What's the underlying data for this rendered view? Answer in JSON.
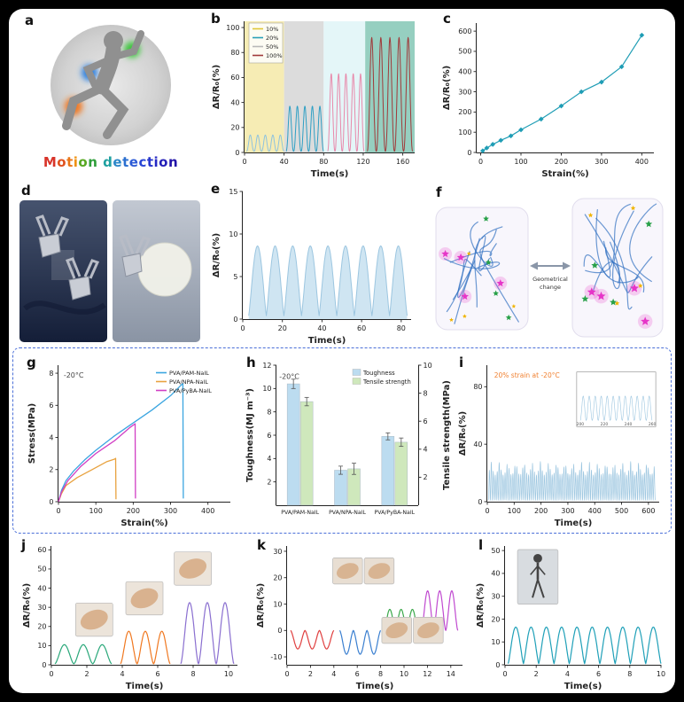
{
  "labels": {
    "a": "a",
    "b": "b",
    "c": "c",
    "d": "d",
    "e": "e",
    "f": "f",
    "g": "g",
    "h": "h",
    "i": "i",
    "j": "j",
    "k": "k",
    "l": "l"
  },
  "panel_a": {
    "caption": "Motion detection",
    "caption_colors": [
      "#d8342a",
      "#e0511e",
      "#ea7517",
      "#ef9212",
      "#58a822",
      "#2f9e3a",
      "#2f9e3a",
      "#1fa0a0",
      "#2b86c8",
      "#2b6fd0",
      "#2b5ad6",
      "#2946d6",
      "#2736cc",
      "#2528c4",
      "#231fb8",
      "#2113a8"
    ],
    "highlights": {
      "shoulder": "#3ec63e",
      "elbow": "#2a7fe0",
      "knee": "#f07820"
    }
  },
  "panel_f": {
    "caption_line1": "Geometrical",
    "caption_line2": "change",
    "chain_color": "#2f6fc0",
    "star_colors": [
      "#e635c8",
      "#28a048",
      "#f0b400"
    ]
  },
  "chart_data": [
    {
      "panel": "b",
      "type": "line",
      "xlabel": "Time(s)",
      "ylabel": "ΔR/R₀(%)",
      "xlim": [
        0,
        172
      ],
      "ylim": [
        0,
        105
      ],
      "xticks": [
        0,
        40,
        80,
        120,
        160
      ],
      "yticks": [
        0,
        20,
        40,
        60,
        80,
        100
      ],
      "m": {
        "l": 38,
        "r": 6,
        "t": 8,
        "b": 30
      },
      "bands": [
        {
          "x0": 0,
          "x1": 40,
          "color": "#f6ecb4"
        },
        {
          "x0": 40,
          "x1": 80,
          "color": "#dcdcdc"
        },
        {
          "x0": 80,
          "x1": 122,
          "color": "#e4f6f8"
        },
        {
          "x0": 122,
          "x1": 172,
          "color": "#96cfc0"
        }
      ],
      "waves": [
        {
          "x0": 2,
          "x1": 40,
          "cycles": 5,
          "amp": 13,
          "base": 1,
          "pow": 2.5,
          "color": "#8fc3de",
          "lw": 1
        },
        {
          "x0": 42,
          "x1": 80,
          "cycles": 5,
          "amp": 36,
          "base": 1,
          "pow": 2.5,
          "color": "#2e9fc4",
          "lw": 1
        },
        {
          "x0": 84,
          "x1": 121,
          "cycles": 5,
          "amp": 62,
          "base": 1,
          "pow": 2.5,
          "color": "#e888aa",
          "lw": 1
        },
        {
          "x0": 124,
          "x1": 170,
          "cycles": 5,
          "amp": 91,
          "base": 1,
          "pow": 2.5,
          "color": "#a03a3a",
          "lw": 1
        }
      ],
      "legend": {
        "pos": "tl",
        "w": 38,
        "box": true,
        "swatch": "line",
        "fs": 6.5,
        "items": [
          {
            "label": "10%",
            "color": "#e0c838"
          },
          {
            "label": "20%",
            "color": "#28a0b8"
          },
          {
            "label": "50%",
            "color": "#b8b8b8"
          },
          {
            "label": "100%",
            "color": "#a03a3a"
          }
        ]
      }
    },
    {
      "panel": "c",
      "type": "scatter-line",
      "xlabel": "Strain(%)",
      "ylabel": "ΔR/R₀(%)",
      "xlim": [
        -10,
        430
      ],
      "ylim": [
        0,
        640
      ],
      "xticks": [
        0,
        100,
        200,
        300,
        400
      ],
      "yticks": [
        0,
        100,
        200,
        300,
        400,
        500,
        600
      ],
      "m": {
        "l": 40,
        "r": 12,
        "t": 10,
        "b": 30
      },
      "lines": [
        {
          "color": "#1f9db5",
          "lw": 1.2,
          "markers": true,
          "points": [
            [
              5,
              8
            ],
            [
              15,
              22
            ],
            [
              30,
              40
            ],
            [
              50,
              60
            ],
            [
              75,
              82
            ],
            [
              100,
              112
            ],
            [
              150,
              165
            ],
            [
              200,
              230
            ],
            [
              250,
              300
            ],
            [
              300,
              348
            ],
            [
              350,
              424
            ],
            [
              400,
              580
            ]
          ]
        }
      ]
    },
    {
      "panel": "e",
      "type": "area-cycles",
      "xlabel": "Time(s)",
      "ylabel": "ΔR/R₀(%)",
      "xlim": [
        0,
        85
      ],
      "ylim": [
        0,
        15
      ],
      "xticks": [
        0,
        20,
        40,
        60,
        80
      ],
      "yticks": [
        0,
        5,
        10,
        15
      ],
      "m": {
        "l": 36,
        "r": 10,
        "t": 8,
        "b": 30
      },
      "waves": [
        {
          "x0": 3,
          "x1": 83,
          "cycles": 9,
          "amp": 8.2,
          "base": 0.4,
          "pow": 1.2,
          "color": "#9cc6e0",
          "fill": "#cfe5f2",
          "lw": 1
        }
      ]
    },
    {
      "panel": "g",
      "type": "line",
      "xlabel": "Strain(%)",
      "ylabel": "Stress(MPa)",
      "xlim": [
        0,
        460
      ],
      "ylim": [
        0,
        8.5
      ],
      "xticks": [
        0,
        100,
        200,
        300,
        400
      ],
      "yticks": [
        0,
        2,
        4,
        6,
        8
      ],
      "m": {
        "l": 36,
        "r": 8,
        "t": 8,
        "b": 30
      },
      "ann": [
        {
          "text": "-20°C",
          "fx": 0.03,
          "fy": 0.07,
          "fs": 8,
          "color": "#444"
        }
      ],
      "legend": {
        "pos": "tr",
        "w": 88,
        "box": false,
        "swatch": "line",
        "fs": 6.5,
        "items": [
          {
            "label": "PVA/PAM-NaIL",
            "color": "#3aa5e0"
          },
          {
            "label": "PVA/NPA-NaIL",
            "color": "#e8a23f"
          },
          {
            "label": "PVA/PyBA-NaIL",
            "color": "#d13ec4"
          }
        ]
      },
      "lines": [
        {
          "color": "#3aa5e0",
          "lw": 1.3,
          "points": [
            [
              0,
              0
            ],
            [
              8,
              0.7
            ],
            [
              20,
              1.3
            ],
            [
              40,
              1.9
            ],
            [
              70,
              2.6
            ],
            [
              100,
              3.2
            ],
            [
              150,
              4.1
            ],
            [
              200,
              4.9
            ],
            [
              250,
              5.7
            ],
            [
              300,
              6.6
            ],
            [
              330,
              7.3
            ],
            [
              333,
              7.35
            ],
            [
              334,
              0.2
            ]
          ]
        },
        {
          "color": "#e8a23f",
          "lw": 1.3,
          "points": [
            [
              0,
              0
            ],
            [
              8,
              0.5
            ],
            [
              20,
              1.0
            ],
            [
              50,
              1.5
            ],
            [
              90,
              2.0
            ],
            [
              130,
              2.5
            ],
            [
              150,
              2.65
            ],
            [
              153,
              2.7
            ],
            [
              154,
              0.15
            ]
          ]
        },
        {
          "color": "#d13ec4",
          "lw": 1.3,
          "points": [
            [
              0,
              0
            ],
            [
              8,
              0.6
            ],
            [
              25,
              1.3
            ],
            [
              60,
              2.2
            ],
            [
              100,
              3.0
            ],
            [
              150,
              3.8
            ],
            [
              190,
              4.6
            ],
            [
              205,
              4.85
            ],
            [
              206,
              0.2
            ]
          ]
        }
      ]
    },
    {
      "panel": "h",
      "type": "bar",
      "ylabel": "Toughness(MJ m⁻³)",
      "y2label": "Tensile strength(MPa)",
      "ylim": [
        0,
        12
      ],
      "yticks": [
        2,
        4,
        6,
        8,
        10,
        12
      ],
      "y2lim": [
        0,
        10
      ],
      "y2ticks": [
        2,
        4,
        6,
        8,
        10
      ],
      "m": {
        "l": 36,
        "r": 38,
        "t": 8,
        "b": 26
      },
      "ann": [
        {
          "text": "-20°C",
          "fx": 0.02,
          "fy": 0.08,
          "fs": 8,
          "color": "#444"
        }
      ],
      "legend": {
        "pos": "tr",
        "w": 78,
        "box": false,
        "swatch": "box",
        "fs": 6.8,
        "items": [
          {
            "label": "Toughness",
            "color": "#bcdcf0"
          },
          {
            "label": "Tensile strength",
            "color": "#cfe8bc"
          }
        ]
      },
      "bars": {
        "categories": [
          "PVA/PAM-NaIL",
          "PVA/NPA-NaIL",
          "PVA/PyBA-NaIL"
        ],
        "width": 15,
        "series": [
          {
            "name": "Toughness",
            "axis": "left",
            "color": "#bcdcf0",
            "values": [
              10.4,
              3.0,
              5.9
            ],
            "err": [
              0.4,
              0.35,
              0.3
            ]
          },
          {
            "name": "Tensile strength",
            "axis": "right",
            "color": "#cfe8bc",
            "values": [
              7.4,
              2.6,
              4.5
            ],
            "err": [
              0.3,
              0.4,
              0.3
            ]
          }
        ]
      }
    },
    {
      "panel": "i",
      "type": "line-cycles",
      "xlabel": "Time(s)",
      "ylabel": "ΔR/R₀(%)",
      "xlim": [
        0,
        640
      ],
      "ylim": [
        0,
        95
      ],
      "xticks": [
        0,
        100,
        200,
        300,
        400,
        500,
        600
      ],
      "yticks": [
        0,
        40,
        80
      ],
      "m": {
        "l": 34,
        "r": 8,
        "t": 8,
        "b": 30
      },
      "ann": [
        {
          "text": "20% strain at -20°C",
          "fx": 0.04,
          "fy": 0.07,
          "fs": 7.5,
          "color": "#f08030"
        }
      ],
      "waves": [
        {
          "x0": 4,
          "x1": 625,
          "cycles": 85,
          "amp": 27,
          "base": 1,
          "pow": 2,
          "jitter": 0.35,
          "color": "#9cc6e0",
          "lw": 0.7
        }
      ],
      "insets": [
        {
          "type": "minichart",
          "fx": 0.52,
          "fy": 0.05,
          "fw": 0.46,
          "fh": 0.4,
          "cycles": 12,
          "amp": 0.6,
          "color": "#9cc6e0",
          "ticks": [
            "200",
            "220",
            "240",
            "260"
          ]
        }
      ]
    },
    {
      "panel": "j",
      "type": "line-cycles",
      "xlabel": "Time(s)",
      "ylabel": "ΔR/R₀(%)",
      "xlim": [
        0,
        10.5
      ],
      "ylim": [
        0,
        62
      ],
      "xticks": [
        0,
        2,
        4,
        6,
        8,
        10
      ],
      "yticks": [
        0,
        10,
        20,
        30,
        40,
        50,
        60
      ],
      "m": {
        "l": 34,
        "r": 8,
        "t": 6,
        "b": 30
      },
      "waves": [
        {
          "x0": 0.2,
          "x1": 3.4,
          "cycles": 3,
          "amp": 10,
          "base": 0.5,
          "pow": 1.6,
          "color": "#2aa87a",
          "lw": 1.2
        },
        {
          "x0": 3.9,
          "x1": 6.7,
          "cycles": 3,
          "amp": 17,
          "base": 0.5,
          "pow": 1.6,
          "color": "#f07820",
          "lw": 1.2
        },
        {
          "x0": 7.3,
          "x1": 10.3,
          "cycles": 3,
          "amp": 32,
          "base": 0.5,
          "pow": 1.6,
          "color": "#8a6fd0",
          "lw": 1.2
        }
      ],
      "insets": [
        {
          "type": "photo",
          "variant": "hand1",
          "fx": 0.13,
          "fy": 0.48,
          "fw": 0.2,
          "fh": 0.28
        },
        {
          "type": "photo",
          "variant": "hand2",
          "fx": 0.4,
          "fy": 0.3,
          "fw": 0.2,
          "fh": 0.28
        },
        {
          "type": "photo",
          "variant": "hand3",
          "fx": 0.66,
          "fy": 0.05,
          "fw": 0.2,
          "fh": 0.28
        }
      ]
    },
    {
      "panel": "k",
      "type": "line-cycles",
      "xlabel": "Time(s)",
      "ylabel": "ΔR/R₀(%)",
      "xlim": [
        0,
        15
      ],
      "ylim": [
        -13,
        32
      ],
      "xticks": [
        0,
        2,
        4,
        6,
        8,
        10,
        12,
        14
      ],
      "yticks": [
        -10,
        0,
        10,
        20,
        30
      ],
      "m": {
        "l": 36,
        "r": 6,
        "t": 6,
        "b": 30
      },
      "waves": [
        {
          "x0": 0.3,
          "x1": 4.0,
          "cycles": 3,
          "amp": -7,
          "base": 0,
          "pow": 1.6,
          "color": "#e04040",
          "lw": 1.2
        },
        {
          "x0": 4.5,
          "x1": 8.0,
          "cycles": 3,
          "amp": -9,
          "base": 0,
          "pow": 1.6,
          "color": "#3a7fd0",
          "lw": 1.2
        },
        {
          "x0": 8.3,
          "x1": 11.2,
          "cycles": 3,
          "amp": 8,
          "base": 0,
          "pow": 1.6,
          "color": "#3aa84a",
          "lw": 1.2
        },
        {
          "x0": 11.5,
          "x1": 14.6,
          "cycles": 3,
          "amp": 15,
          "base": 0,
          "pow": 1.6,
          "color": "#c04ad0",
          "lw": 1.2
        }
      ],
      "insets": [
        {
          "type": "photo",
          "variant": "arm1",
          "fx": 0.26,
          "fy": 0.1,
          "fw": 0.17,
          "fh": 0.22
        },
        {
          "type": "photo",
          "variant": "arm2",
          "fx": 0.44,
          "fy": 0.1,
          "fw": 0.17,
          "fh": 0.22
        },
        {
          "type": "photo",
          "variant": "arm3",
          "fx": 0.54,
          "fy": 0.6,
          "fw": 0.17,
          "fh": 0.22
        },
        {
          "type": "photo",
          "variant": "arm4",
          "fx": 0.72,
          "fy": 0.6,
          "fw": 0.17,
          "fh": 0.22
        }
      ]
    },
    {
      "panel": "l",
      "type": "line-cycles",
      "xlabel": "Time(s)",
      "ylabel": "ΔR/R₀(%)",
      "xlim": [
        0,
        10
      ],
      "ylim": [
        0,
        52
      ],
      "xticks": [
        0,
        2,
        4,
        6,
        8,
        10
      ],
      "yticks": [
        0,
        10,
        20,
        30,
        40,
        50
      ],
      "m": {
        "l": 34,
        "r": 10,
        "t": 6,
        "b": 30
      },
      "waves": [
        {
          "x0": 0.2,
          "x1": 10,
          "cycles": 10,
          "amp": 16,
          "base": 0.5,
          "pow": 1.3,
          "color": "#1fa0b8",
          "lw": 1.2
        }
      ],
      "insets": [
        {
          "type": "photo",
          "variant": "person",
          "fx": 0.08,
          "fy": 0.03,
          "fw": 0.26,
          "fh": 0.46
        }
      ]
    }
  ]
}
